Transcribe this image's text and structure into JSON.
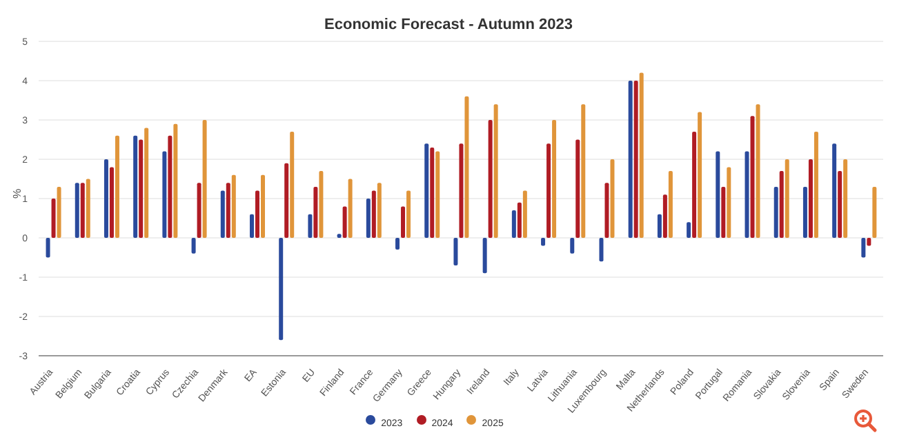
{
  "chart_data": {
    "type": "bar",
    "title": "Economic Forecast - Autumn 2023",
    "ylabel": "%",
    "categories": [
      "Austria",
      "Belgium",
      "Bulgaria",
      "Croatia",
      "Cyprus",
      "Czechia",
      "Denmark",
      "EA",
      "Estonia",
      "EU",
      "Finland",
      "France",
      "Germany",
      "Greece",
      "Hungary",
      "Ireland",
      "Italy",
      "Latvia",
      "Lithuania",
      "Luxembourg",
      "Malta",
      "Netherlands",
      "Poland",
      "Portugal",
      "Romania",
      "Slovakia",
      "Slovenia",
      "Spain",
      "Sweden"
    ],
    "series": [
      {
        "name": "2023",
        "color": "#2a4a9c",
        "values": [
          -0.5,
          1.4,
          2.0,
          2.6,
          2.2,
          -0.4,
          1.2,
          0.6,
          -2.6,
          0.6,
          0.1,
          1.0,
          -0.3,
          2.4,
          -0.7,
          -0.9,
          0.7,
          -0.2,
          -0.4,
          -0.6,
          4.0,
          0.6,
          0.4,
          2.2,
          2.2,
          1.3,
          1.3,
          2.4,
          -0.5
        ]
      },
      {
        "name": "2024",
        "color": "#b01c24",
        "values": [
          1.0,
          1.4,
          1.8,
          2.5,
          2.6,
          1.4,
          1.4,
          1.2,
          1.9,
          1.3,
          0.8,
          1.2,
          0.8,
          2.3,
          2.4,
          3.0,
          0.9,
          2.4,
          2.5,
          1.4,
          4.0,
          1.1,
          2.7,
          1.3,
          3.1,
          1.7,
          2.0,
          1.7,
          -0.2
        ]
      },
      {
        "name": "2025",
        "color": "#e0953a",
        "values": [
          1.3,
          1.5,
          2.6,
          2.8,
          2.9,
          3.0,
          1.6,
          1.6,
          2.7,
          1.7,
          1.5,
          1.4,
          1.2,
          2.2,
          3.6,
          3.4,
          1.2,
          3.0,
          3.4,
          2.0,
          4.2,
          1.7,
          3.2,
          1.8,
          3.4,
          2.0,
          2.7,
          2.0,
          1.3
        ]
      }
    ],
    "ylim": [
      -3,
      5
    ],
    "yticks": [
      -3,
      -2,
      -1,
      0,
      1,
      2,
      3,
      4,
      5
    ],
    "grid": "y",
    "legend": "bottom"
  }
}
